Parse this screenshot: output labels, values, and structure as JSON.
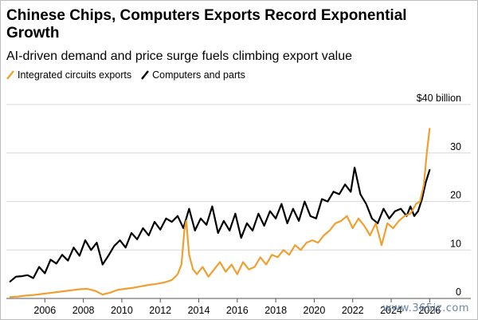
{
  "watermark": "www.365jz.com",
  "chart_data": {
    "type": "line",
    "title": "Chinese Chips, Computers Exports Record Exponential Growth",
    "subtitle": "AI-driven demand and price surge fuels climbing export value",
    "unit_label": "$40 billion",
    "ylim": [
      0,
      40
    ],
    "yticks": [
      0,
      10,
      20,
      30,
      40
    ],
    "ytick_labels": [
      "0",
      "10",
      "20",
      "30",
      "$40 billion"
    ],
    "xlim": [
      2004.0,
      2026.4
    ],
    "xticks": [
      2006,
      2008,
      2010,
      2012,
      2014,
      2016,
      2018,
      2020,
      2022,
      2024,
      2026
    ],
    "legend_position": "top-left",
    "grid": "horizontal",
    "series": [
      {
        "name": "Computers and parts",
        "color": "#000000",
        "x": [
          2004.2,
          2004.5,
          2004.8,
          2005.1,
          2005.4,
          2005.7,
          2006.0,
          2006.3,
          2006.6,
          2006.9,
          2007.2,
          2007.5,
          2007.8,
          2008.1,
          2008.4,
          2008.7,
          2009.0,
          2009.3,
          2009.6,
          2009.9,
          2010.2,
          2010.5,
          2010.8,
          2011.1,
          2011.4,
          2011.7,
          2012.0,
          2012.3,
          2012.6,
          2012.9,
          2013.2,
          2013.5,
          2013.8,
          2014.1,
          2014.4,
          2014.7,
          2015.0,
          2015.3,
          2015.6,
          2015.9,
          2016.2,
          2016.5,
          2016.8,
          2017.1,
          2017.4,
          2017.7,
          2018.0,
          2018.3,
          2018.6,
          2018.9,
          2019.2,
          2019.5,
          2019.8,
          2020.1,
          2020.4,
          2020.7,
          2021.0,
          2021.3,
          2021.6,
          2021.9,
          2022.1,
          2022.4,
          2022.7,
          2023.0,
          2023.3,
          2023.6,
          2023.9,
          2024.2,
          2024.5,
          2024.8,
          2025.0,
          2025.2,
          2025.4,
          2025.6,
          2025.8,
          2026.0
        ],
        "values": [
          3.5,
          4.5,
          4.6,
          4.8,
          4.2,
          6.5,
          5.2,
          8.0,
          7.2,
          9.0,
          7.8,
          10.5,
          8.8,
          12.0,
          10.0,
          11.5,
          7.0,
          8.8,
          10.8,
          12.0,
          10.5,
          13.5,
          12.2,
          14.5,
          13.0,
          15.8,
          14.2,
          16.5,
          15.8,
          17.0,
          14.5,
          18.5,
          14.0,
          16.5,
          15.2,
          19.0,
          13.5,
          16.0,
          14.0,
          17.5,
          12.5,
          15.5,
          14.0,
          17.5,
          15.0,
          18.0,
          16.5,
          19.5,
          15.5,
          18.5,
          16.0,
          20.0,
          17.0,
          16.5,
          20.5,
          20.0,
          22.0,
          21.5,
          23.5,
          22.0,
          27.0,
          21.5,
          19.5,
          16.5,
          15.5,
          18.5,
          16.5,
          18.0,
          18.5,
          17.0,
          19.0,
          17.0,
          18.0,
          20.5,
          24.0,
          26.5
        ]
      },
      {
        "name": "Integrated circuits exports",
        "color": "#f0a030",
        "x": [
          2004.2,
          2004.6,
          2005.0,
          2005.4,
          2005.8,
          2006.2,
          2006.6,
          2007.0,
          2007.4,
          2007.8,
          2008.2,
          2008.6,
          2009.0,
          2009.4,
          2009.8,
          2010.2,
          2010.6,
          2011.0,
          2011.4,
          2011.8,
          2012.2,
          2012.6,
          2012.9,
          2013.1,
          2013.25,
          2013.35,
          2013.5,
          2013.7,
          2013.9,
          2014.2,
          2014.5,
          2014.8,
          2015.1,
          2015.4,
          2015.7,
          2016.0,
          2016.3,
          2016.6,
          2016.9,
          2017.2,
          2017.5,
          2017.8,
          2018.1,
          2018.4,
          2018.7,
          2019.0,
          2019.3,
          2019.6,
          2019.9,
          2020.2,
          2020.5,
          2020.8,
          2021.1,
          2021.4,
          2021.7,
          2022.0,
          2022.3,
          2022.6,
          2022.9,
          2023.2,
          2023.5,
          2023.8,
          2024.1,
          2024.4,
          2024.7,
          2025.0,
          2025.3,
          2025.5,
          2025.7,
          2025.85,
          2026.0
        ],
        "values": [
          0.3,
          0.4,
          0.6,
          0.7,
          0.9,
          1.1,
          1.3,
          1.5,
          1.7,
          1.9,
          2.0,
          1.6,
          0.8,
          1.2,
          1.8,
          2.0,
          2.2,
          2.5,
          2.8,
          3.0,
          3.3,
          3.8,
          5.0,
          7.0,
          14.0,
          16.0,
          9.0,
          6.0,
          5.0,
          6.5,
          4.5,
          6.0,
          7.5,
          5.5,
          7.0,
          5.0,
          7.5,
          6.0,
          6.5,
          8.5,
          7.0,
          9.0,
          8.5,
          10.0,
          9.0,
          11.0,
          10.0,
          11.5,
          12.0,
          11.5,
          13.0,
          14.0,
          15.5,
          16.0,
          17.0,
          14.5,
          16.5,
          15.0,
          13.0,
          15.5,
          11.0,
          15.5,
          14.5,
          16.0,
          17.0,
          17.5,
          19.5,
          20.0,
          23.5,
          30.0,
          35.0
        ]
      }
    ]
  }
}
